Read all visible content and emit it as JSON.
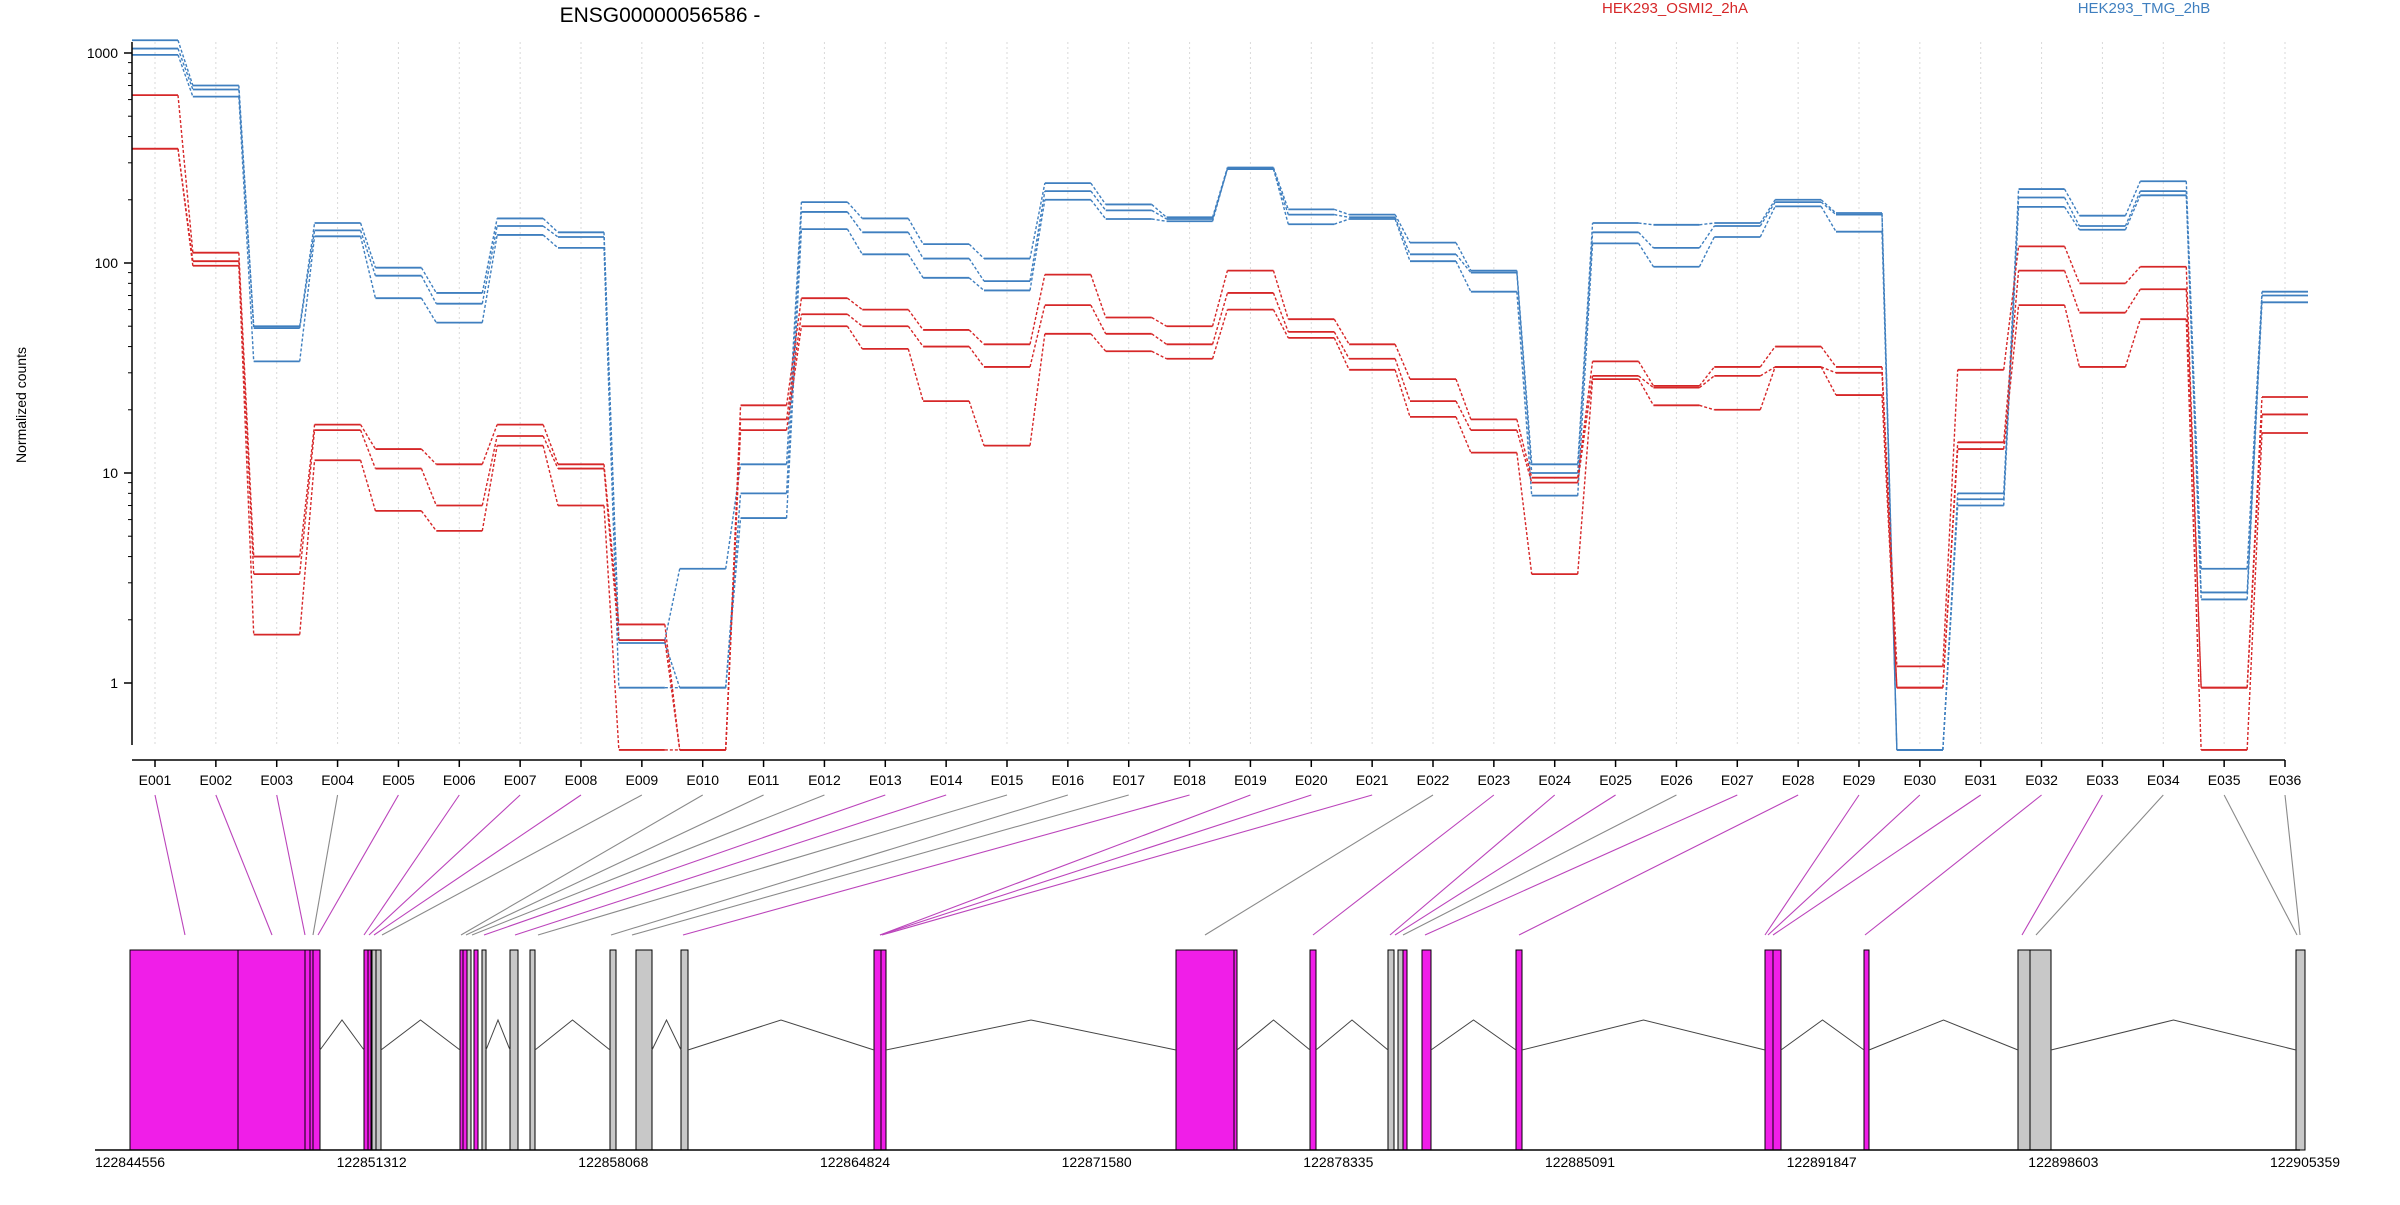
{
  "chart_data": {
    "type": "line",
    "title": "ENSG00000056586 -",
    "ylabel": "Normalized counts",
    "xlabel": "",
    "yscale": "log",
    "ylim": [
      0.4,
      1500
    ],
    "yticks": [
      1,
      10,
      100,
      1000
    ],
    "ytick_labels": [
      "1",
      "10",
      "100",
      "1000"
    ],
    "grid": "vertical dotted",
    "legend_position": "top",
    "colors": {
      "HEK293_OSMI2_2hA": "#d62728",
      "HEK293_TMG_2hB": "#3f7fbf",
      "exon_highlight": "#f01ee8",
      "exon_plain": "#c8c8c8"
    },
    "categories": [
      "E001",
      "E002",
      "E003",
      "E004",
      "E005",
      "E006",
      "E007",
      "E008",
      "E009",
      "E010",
      "E011",
      "E012",
      "E013",
      "E014",
      "E015",
      "E016",
      "E017",
      "E018",
      "E019",
      "E020",
      "E021",
      "E022",
      "E023",
      "E024",
      "E025",
      "E026",
      "E027",
      "E028",
      "E029",
      "E030",
      "E031",
      "E032",
      "E033",
      "E034",
      "E035",
      "E036"
    ],
    "series": [
      {
        "name": "HEK293_TMG_2hB",
        "color": "#3f7fbf",
        "values": [
          1150,
          700,
          50,
          155,
          95,
          72,
          163,
          140,
          1.6,
          3.5,
          11,
          195,
          163,
          123,
          105,
          240,
          190,
          165,
          285,
          180,
          170,
          125,
          92,
          11,
          155,
          152,
          155,
          200,
          173,
          0.48,
          8,
          225,
          168,
          245,
          3.5,
          73
        ]
      },
      {
        "name": "HEK293_TMG_2hB",
        "color": "#3f7fbf",
        "values": [
          1050,
          670,
          49,
          143,
          87,
          64,
          150,
          133,
          1.55,
          0.95,
          8,
          175,
          140,
          105,
          82,
          220,
          178,
          162,
          280,
          170,
          165,
          110,
          90,
          10,
          140,
          118,
          150,
          195,
          170,
          0.48,
          7.5,
          205,
          150,
          220,
          2.7,
          70
        ]
      },
      {
        "name": "HEK293_TMG_2hB",
        "color": "#3f7fbf",
        "values": [
          980,
          620,
          34,
          134,
          68,
          52,
          136,
          118,
          0.95,
          0.95,
          6.1,
          145,
          110,
          85,
          74,
          200,
          162,
          158,
          282,
          153,
          162,
          102,
          73,
          7.8,
          124,
          96,
          133,
          186,
          141,
          0.48,
          7,
          185,
          144,
          210,
          2.5,
          65
        ]
      },
      {
        "name": "HEK293_OSMI2_2hA",
        "color": "#d62728",
        "values": [
          630,
          112,
          4,
          17,
          13,
          11,
          17,
          11,
          1.9,
          0.48,
          21,
          68,
          60,
          48,
          41,
          88,
          55,
          50,
          92,
          54,
          41,
          28,
          18,
          9.5,
          34,
          26,
          32,
          40,
          32,
          1.2,
          31,
          120,
          80,
          96,
          0.95,
          23
        ]
      },
      {
        "name": "HEK293_OSMI2_2hA",
        "color": "#d62728",
        "values": [
          350,
          102,
          3.3,
          16,
          10.5,
          7,
          15,
          10.5,
          1.6,
          0.48,
          18,
          57,
          50,
          40,
          32,
          63,
          46,
          41,
          72,
          47,
          35,
          22,
          16,
          9,
          29,
          25.5,
          29,
          32,
          30,
          0.95,
          14,
          92,
          58,
          75,
          0.95,
          19
        ]
      },
      {
        "name": "HEK293_OSMI2_2hA",
        "color": "#d62728",
        "values": [
          350,
          97,
          1.7,
          11.5,
          6.6,
          5.3,
          13.5,
          7,
          0.48,
          0.48,
          16,
          50,
          39,
          22,
          13.5,
          46,
          38,
          35,
          60,
          44,
          31,
          18.5,
          12.5,
          3.3,
          28,
          21,
          20,
          32,
          23.5,
          0.95,
          13,
          63,
          32,
          54,
          0.48,
          15.5
        ]
      }
    ],
    "genomic_axis": {
      "ticks": [
        "122844556",
        "122851312",
        "122858068",
        "122864824",
        "122871580",
        "122878335",
        "122885091",
        "122891847",
        "122898603",
        "122905359"
      ]
    },
    "exon_highlight": [
      true,
      true,
      true,
      false,
      true,
      true,
      true,
      true,
      false,
      false,
      false,
      false,
      true,
      true,
      false,
      false,
      false,
      true,
      true,
      true,
      true,
      false,
      true,
      true,
      true,
      false,
      true,
      true,
      true,
      true,
      true,
      true,
      true,
      false,
      false,
      false
    ]
  }
}
